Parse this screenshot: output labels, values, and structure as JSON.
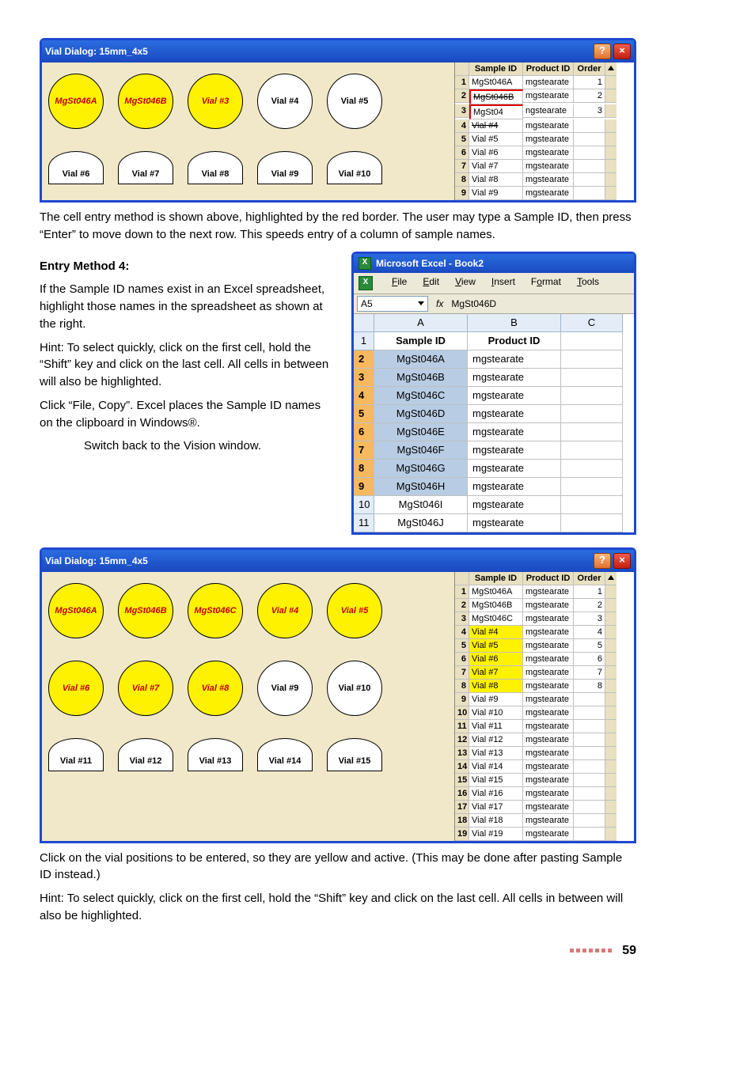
{
  "dialog1": {
    "title": "Vial Dialog: 15mm_4x5",
    "row1": [
      {
        "label": "MgSt046A",
        "yellow": true,
        "red": true
      },
      {
        "label": "MgSt046B",
        "yellow": true,
        "red": true
      },
      {
        "label": "Vial #3",
        "yellow": true,
        "red": true
      },
      {
        "label": "Vial #4",
        "yellow": false
      },
      {
        "label": "Vial #5",
        "yellow": false
      }
    ],
    "row2": [
      {
        "label": "Vial #6"
      },
      {
        "label": "Vial #7"
      },
      {
        "label": "Vial #8"
      },
      {
        "label": "Vial #9"
      },
      {
        "label": "Vial #10"
      }
    ],
    "side_headers": [
      "Sample ID",
      "Product ID",
      "Order"
    ],
    "side_rows": [
      {
        "n": "1",
        "sid": "MgSt046A",
        "pid": "mgstearate",
        "ord": "1"
      },
      {
        "n": "2",
        "sid": "MgSt046B",
        "pid": "mgstearate",
        "ord": "2",
        "strike": true,
        "redbox": true
      },
      {
        "n": "3",
        "sid": "MgSt04",
        "pid": "ngstearate",
        "ord": "3",
        "redbox": true
      },
      {
        "n": "4",
        "sid": "Vial #4",
        "pid": "mgstearate",
        "ord": " ",
        "strike": true
      },
      {
        "n": "5",
        "sid": "Vial #5",
        "pid": "mgstearate",
        "ord": " "
      },
      {
        "n": "6",
        "sid": "Vial #6",
        "pid": "mgstearate",
        "ord": " "
      },
      {
        "n": "7",
        "sid": "Vial #7",
        "pid": "mgstearate",
        "ord": " "
      },
      {
        "n": "8",
        "sid": "Vial #8",
        "pid": "mgstearate",
        "ord": " "
      },
      {
        "n": "9",
        "sid": "Vial #9",
        "pid": "mgstearate",
        "ord": " "
      }
    ]
  },
  "p1": "The cell entry method is shown above, highlighted by the red border. The user may type a Sample ID, then press “Enter” to move down to the next row. This speeds entry of a column of sample names.",
  "h_entry4": "Entry Method 4:",
  "p2": "If the Sample ID names exist in an Excel spreadsheet, highlight those names in the spreadsheet as shown at the right.",
  "p3": "Hint: To select quickly, click on the first cell, hold the “Shift” key and click on the last cell. All cells in between will also be highlighted.",
  "p4": "Click “File, Copy”. Excel places the Sample ID names on the clipboard in Windows®.",
  "p5": "Switch back to the Vision window.",
  "excel": {
    "title": "Microsoft Excel - Book2",
    "menus": [
      "File",
      "Edit",
      "View",
      "Insert",
      "Format",
      "Tools"
    ],
    "namebox": "A5",
    "fx": "fx",
    "formula": "MgSt046D",
    "cols": [
      "",
      "A",
      "B",
      "C"
    ],
    "rows": [
      {
        "n": "1",
        "a": "Sample ID",
        "b": "Product ID",
        "c": "",
        "bold": true
      },
      {
        "n": "2",
        "a": "MgSt046A",
        "b": "mgstearate",
        "c": "",
        "sel": true
      },
      {
        "n": "3",
        "a": "MgSt046B",
        "b": "mgstearate",
        "c": "",
        "sel": true
      },
      {
        "n": "4",
        "a": "MgSt046C",
        "b": "mgstearate",
        "c": "",
        "sel": true
      },
      {
        "n": "5",
        "a": "MgSt046D",
        "b": "mgstearate",
        "c": "",
        "sel": true
      },
      {
        "n": "6",
        "a": "MgSt046E",
        "b": "mgstearate",
        "c": "",
        "sel": true
      },
      {
        "n": "7",
        "a": "MgSt046F",
        "b": "mgstearate",
        "c": "",
        "sel": true
      },
      {
        "n": "8",
        "a": "MgSt046G",
        "b": "mgstearate",
        "c": "",
        "sel": true
      },
      {
        "n": "9",
        "a": "MgSt046H",
        "b": "mgstearate",
        "c": "",
        "sel": true
      },
      {
        "n": "10",
        "a": "MgSt046I",
        "b": "mgstearate",
        "c": ""
      },
      {
        "n": "11",
        "a": "MgSt046J",
        "b": "mgstearate",
        "c": ""
      }
    ]
  },
  "dialog2": {
    "title": "Vial Dialog: 15mm_4x5",
    "rows": [
      [
        {
          "label": "MgSt046A",
          "yellow": true,
          "red": true
        },
        {
          "label": "MgSt046B",
          "yellow": true,
          "red": true
        },
        {
          "label": "MgSt046C",
          "yellow": true,
          "red": true
        },
        {
          "label": "Vial #4",
          "yellow": true,
          "red": true
        },
        {
          "label": "Vial #5",
          "yellow": true,
          "red": true
        }
      ],
      [
        {
          "label": "Vial #6",
          "yellow": true,
          "red": true
        },
        {
          "label": "Vial #7",
          "yellow": true,
          "red": true
        },
        {
          "label": "Vial #8",
          "yellow": true,
          "red": true
        },
        {
          "label": "Vial #9"
        },
        {
          "label": "Vial #10"
        }
      ],
      [
        {
          "label": "Vial #11"
        },
        {
          "label": "Vial #12"
        },
        {
          "label": "Vial #13"
        },
        {
          "label": "Vial #14"
        },
        {
          "label": "Vial #15"
        }
      ]
    ],
    "side_headers": [
      "Sample ID",
      "Product ID",
      "Order"
    ],
    "side_rows": [
      {
        "n": "1",
        "sid": "MgSt046A",
        "pid": "mgstearate",
        "ord": "1"
      },
      {
        "n": "2",
        "sid": "MgSt046B",
        "pid": "mgstearate",
        "ord": "2"
      },
      {
        "n": "3",
        "sid": "MgSt046C",
        "pid": "mgstearate",
        "ord": "3"
      },
      {
        "n": "4",
        "sid": "Vial #4",
        "pid": "mgstearate",
        "ord": "4",
        "sel": true
      },
      {
        "n": "5",
        "sid": "Vial #5",
        "pid": "mgstearate",
        "ord": "5",
        "sel": true
      },
      {
        "n": "6",
        "sid": "Vial #6",
        "pid": "mgstearate",
        "ord": "6",
        "sel": true
      },
      {
        "n": "7",
        "sid": "Vial #7",
        "pid": "mgstearate",
        "ord": "7",
        "sel": true
      },
      {
        "n": "8",
        "sid": "Vial #8",
        "pid": "mgstearate",
        "ord": "8",
        "sel": true
      },
      {
        "n": "9",
        "sid": "Vial #9",
        "pid": "mgstearate",
        "ord": ""
      },
      {
        "n": "10",
        "sid": "Vial #10",
        "pid": "mgstearate",
        "ord": ""
      },
      {
        "n": "11",
        "sid": "Vial #11",
        "pid": "mgstearate",
        "ord": ""
      },
      {
        "n": "12",
        "sid": "Vial #12",
        "pid": "mgstearate",
        "ord": ""
      },
      {
        "n": "13",
        "sid": "Vial #13",
        "pid": "mgstearate",
        "ord": ""
      },
      {
        "n": "14",
        "sid": "Vial #14",
        "pid": "mgstearate",
        "ord": ""
      },
      {
        "n": "15",
        "sid": "Vial #15",
        "pid": "mgstearate",
        "ord": ""
      },
      {
        "n": "16",
        "sid": "Vial #16",
        "pid": "mgstearate",
        "ord": ""
      },
      {
        "n": "17",
        "sid": "Vial #17",
        "pid": "mgstearate",
        "ord": ""
      },
      {
        "n": "18",
        "sid": "Vial #18",
        "pid": "mgstearate",
        "ord": ""
      },
      {
        "n": "19",
        "sid": "Vial #19",
        "pid": "mgstearate",
        "ord": ""
      }
    ]
  },
  "p6": "Click on the vial positions to be entered, so they are yellow and active. (This may be done after pasting Sample ID instead.)",
  "p7": "Hint: To select quickly, click on the first cell, hold the “Shift” key and click on the last cell. All cells in between will also be highlighted.",
  "pagenum": "59"
}
